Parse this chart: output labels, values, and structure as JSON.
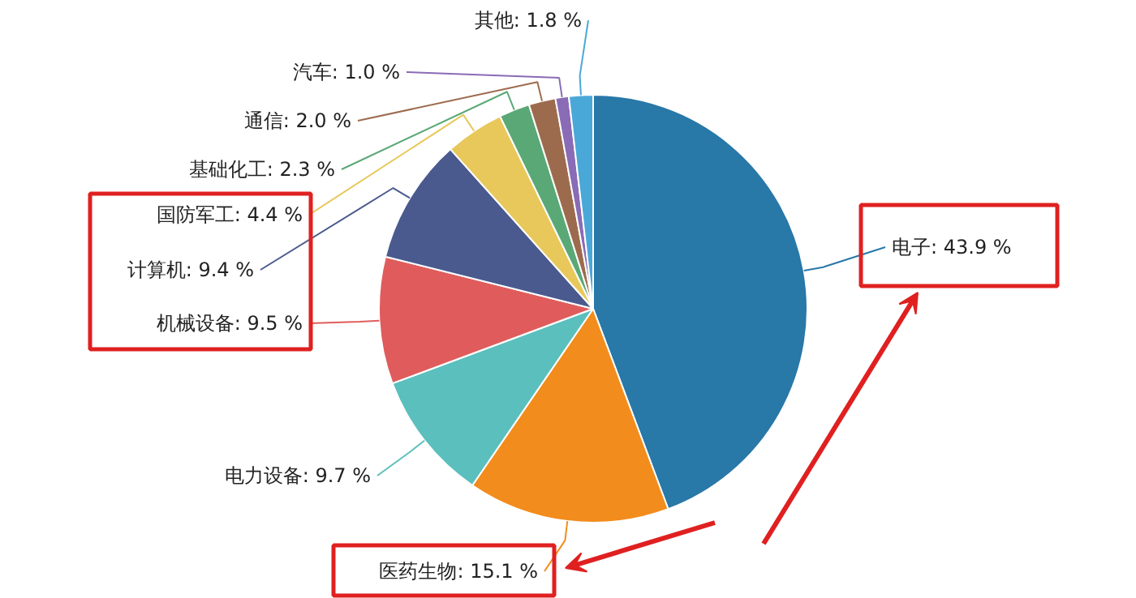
{
  "chart_data": {
    "type": "pie",
    "categories": [
      "电子",
      "医药生物",
      "电力设备",
      "机械设备",
      "计算机",
      "国防军工",
      "基础化工",
      "通信",
      "汽车",
      "其他"
    ],
    "values": [
      43.9,
      15.1,
      9.7,
      9.5,
      9.4,
      4.4,
      2.3,
      2.0,
      1.0,
      1.8
    ],
    "value_labels": [
      "43.9 %",
      "15.1 %",
      "9.7 %",
      "9.5 %",
      "9.4 %",
      "4.4 %",
      "2.3 %",
      "2.0 %",
      "1.0 %",
      "1.8 %"
    ],
    "colors": [
      "#2878a8",
      "#f28c1c",
      "#5bbfbd",
      "#e05c5c",
      "#4a5a8e",
      "#e8c85a",
      "#5aa876",
      "#9c6b4e",
      "#8a6bb5",
      "#4aa8d8"
    ]
  }
}
